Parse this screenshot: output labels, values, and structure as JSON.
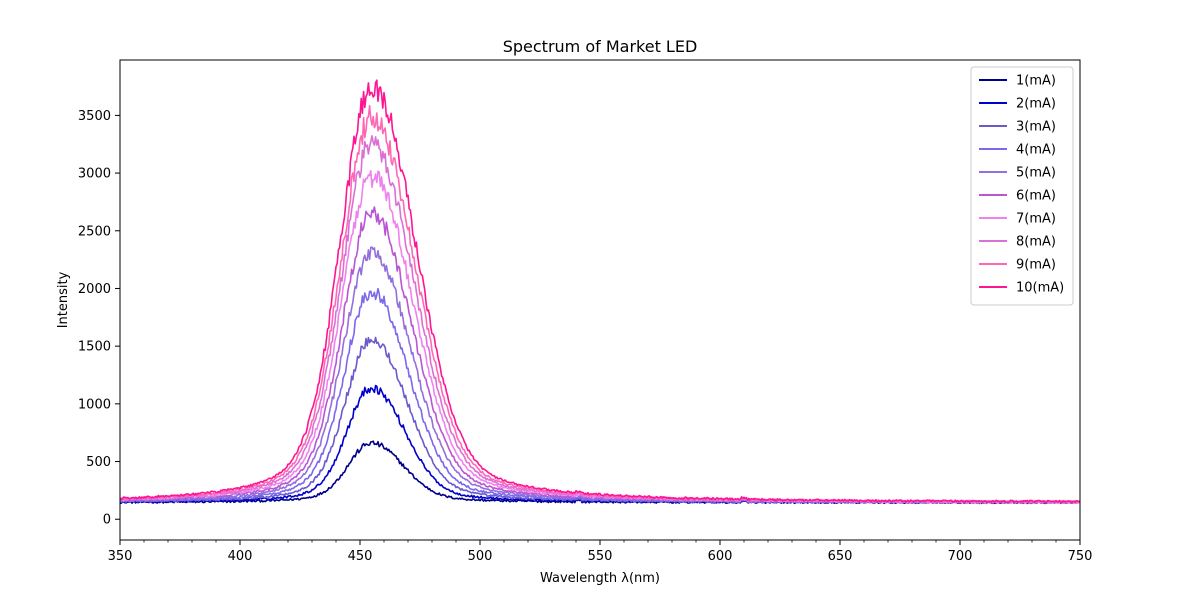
{
  "chart_data": {
    "type": "line",
    "title": "Spectrum of Market LED",
    "xlabel": "Wavelength λ(nm)",
    "ylabel": "Intensity",
    "xlim": [
      350,
      750
    ],
    "ylim": [
      -180,
      3980
    ],
    "xticks": [
      350,
      400,
      450,
      500,
      550,
      600,
      650,
      700,
      750
    ],
    "xtick_labels": [
      "350",
      "400",
      "450",
      "500",
      "550",
      "600",
      "650",
      "700",
      "750"
    ],
    "yticks": [
      0,
      500,
      1000,
      1500,
      2000,
      2500,
      3000,
      3500
    ],
    "ytick_labels": [
      "0",
      "500",
      "1000",
      "1500",
      "2000",
      "2500",
      "3000",
      "3500"
    ],
    "minor_xticks": true,
    "grid": false,
    "legend_position": "top-right",
    "baseline": 145,
    "peak_wavelength": 454,
    "series": [
      {
        "name": "1(mA)",
        "color": "#00008b",
        "peak": 665,
        "width_factor": 1.0
      },
      {
        "name": "2(mA)",
        "color": "#0000cd",
        "peak": 1150,
        "width_factor": 1.05
      },
      {
        "name": "3(mA)",
        "color": "#6a5acd",
        "peak": 1580,
        "width_factor": 1.1
      },
      {
        "name": "4(mA)",
        "color": "#7b68ee",
        "peak": 1990,
        "width_factor": 1.15
      },
      {
        "name": "5(mA)",
        "color": "#9370db",
        "peak": 2350,
        "width_factor": 1.2
      },
      {
        "name": "6(mA)",
        "color": "#ba55d3",
        "peak": 2680,
        "width_factor": 1.24
      },
      {
        "name": "7(mA)",
        "color": "#ee82ee",
        "peak": 3000,
        "width_factor": 1.28
      },
      {
        "name": "8(mA)",
        "color": "#da70d6",
        "peak": 3280,
        "width_factor": 1.31
      },
      {
        "name": "9(mA)",
        "color": "#ff69b4",
        "peak": 3520,
        "width_factor": 1.34
      },
      {
        "name": "10(mA)",
        "color": "#ff1493",
        "peak": 3780,
        "width_factor": 1.37
      }
    ]
  }
}
